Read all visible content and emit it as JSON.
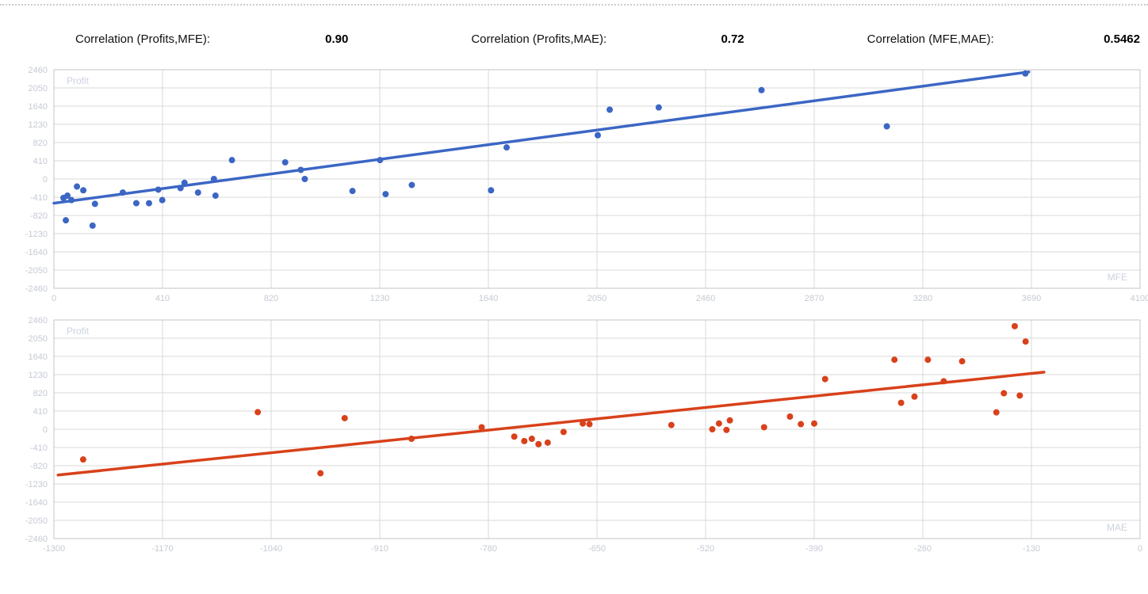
{
  "header": {
    "items": [
      {
        "label": "Correlation (Profits,MFE):",
        "value": "0.90"
      },
      {
        "label": "Correlation (Profits,MAE):",
        "value": "0.72"
      },
      {
        "label": "Correlation (MFE,MAE):",
        "value": "0.5462"
      }
    ]
  },
  "colors": {
    "mfe_series": "#3b66c4",
    "mae_series": "#d8411b",
    "grid": "#d9d9d9",
    "plot_border": "#c6c6c6",
    "axis_tick_text": "#c5cad3",
    "axis_title_text": "#ccd2df"
  },
  "chart_data": [
    {
      "type": "scatter",
      "name": "profits-vs-mfe",
      "xlabel": "MFE",
      "ylabel": "Profit",
      "color": "#3b66c4",
      "grid": true,
      "legend": "none",
      "xlim": [
        0,
        4100
      ],
      "ylim": [
        -2460,
        2460
      ],
      "xticks": [
        0,
        410,
        820,
        1230,
        1640,
        2050,
        2460,
        2870,
        3280,
        3690,
        4100
      ],
      "yticks": [
        2460,
        2050,
        1640,
        1230,
        820,
        410,
        0,
        -410,
        -820,
        -1230,
        -1640,
        -2050,
        -2460
      ],
      "trendline": {
        "x1": 0,
        "y1": -545,
        "x2": 3680,
        "y2": 2410
      },
      "points": [
        [
          36,
          -425
        ],
        [
          51,
          -375
        ],
        [
          66,
          -475
        ],
        [
          87,
          -170
        ],
        [
          111,
          -255
        ],
        [
          45,
          -930
        ],
        [
          146,
          -1050
        ],
        [
          155,
          -560
        ],
        [
          260,
          -305
        ],
        [
          311,
          -545
        ],
        [
          359,
          -545
        ],
        [
          394,
          -240
        ],
        [
          409,
          -475
        ],
        [
          478,
          -205
        ],
        [
          493,
          -85
        ],
        [
          544,
          -305
        ],
        [
          604,
          0
        ],
        [
          610,
          -375
        ],
        [
          672,
          425
        ],
        [
          873,
          375
        ],
        [
          932,
          205
        ],
        [
          947,
          0
        ],
        [
          1127,
          -270
        ],
        [
          1231,
          425
        ],
        [
          1252,
          -340
        ],
        [
          1351,
          -135
        ],
        [
          1650,
          -255
        ],
        [
          1709,
          710
        ],
        [
          2053,
          985
        ],
        [
          2098,
          1560
        ],
        [
          2283,
          1610
        ],
        [
          2671,
          2000
        ],
        [
          3144,
          1185
        ],
        [
          3667,
          2375
        ]
      ]
    },
    {
      "type": "scatter",
      "name": "profits-vs-mae",
      "xlabel": "MAE",
      "ylabel": "Profit",
      "color": "#d8411b",
      "grid": true,
      "legend": "none",
      "xlim": [
        -1300,
        0
      ],
      "ylim": [
        -2460,
        2460
      ],
      "xticks": [
        -1300,
        -1170,
        -1040,
        -910,
        -780,
        -650,
        -520,
        -390,
        -260,
        -130,
        0
      ],
      "yticks": [
        2460,
        2050,
        1640,
        1230,
        820,
        410,
        0,
        -410,
        -820,
        -1230,
        -1640,
        -2050,
        -2460
      ],
      "trendline": {
        "x1": -1295,
        "y1": -1030,
        "x2": -115,
        "y2": 1285
      },
      "points": [
        [
          -1265,
          -680
        ],
        [
          -1056,
          385
        ],
        [
          -981,
          -990
        ],
        [
          -952,
          250
        ],
        [
          -872,
          -215
        ],
        [
          -788,
          45
        ],
        [
          -749,
          -165
        ],
        [
          -737,
          -265
        ],
        [
          -728,
          -215
        ],
        [
          -720,
          -335
        ],
        [
          -709,
          -300
        ],
        [
          -690,
          -60
        ],
        [
          -667,
          130
        ],
        [
          -659,
          115
        ],
        [
          -561,
          95
        ],
        [
          -512,
          0
        ],
        [
          -504,
          130
        ],
        [
          -495,
          -15
        ],
        [
          -491,
          200
        ],
        [
          -450,
          45
        ],
        [
          -419,
          285
        ],
        [
          -406,
          115
        ],
        [
          -390,
          130
        ],
        [
          -377,
          1130
        ],
        [
          -294,
          1565
        ],
        [
          -286,
          595
        ],
        [
          -270,
          735
        ],
        [
          -254,
          1565
        ],
        [
          -235,
          1080
        ],
        [
          -213,
          1530
        ],
        [
          -172,
          380
        ],
        [
          -163,
          810
        ],
        [
          -150,
          2320
        ],
        [
          -144,
          760
        ],
        [
          -137,
          1975
        ]
      ]
    }
  ]
}
